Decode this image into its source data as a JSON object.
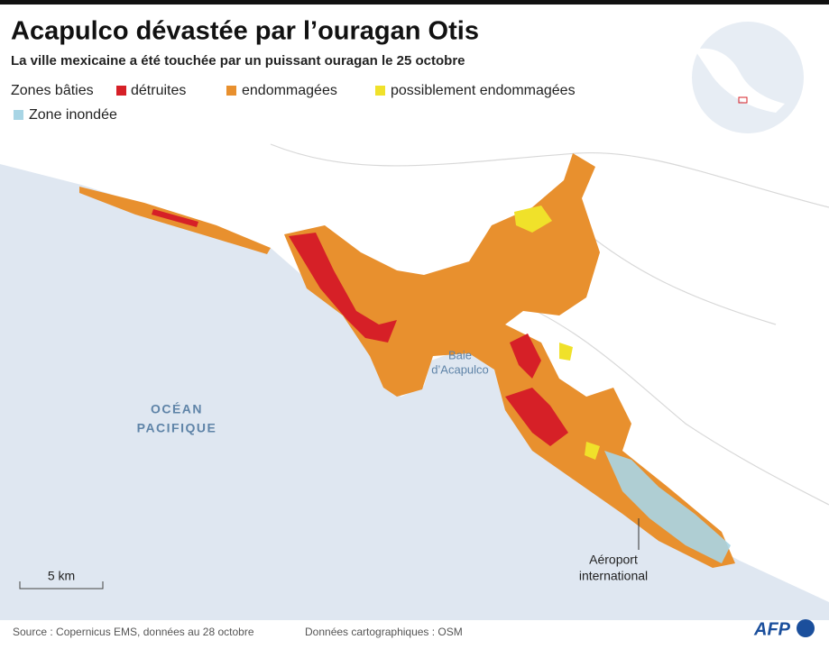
{
  "header": {
    "title": "Acapulco dévastée par l’ouragan Otis",
    "subtitle": "La ville mexicaine a été touchée par un puissant ouragan le 25 octobre"
  },
  "legend": {
    "label": "Zones bâties",
    "items": [
      "détruites",
      "endommagées",
      "possiblement endommagées"
    ],
    "flood": "Zone inondée"
  },
  "map_labels": {
    "ocean": [
      "OCÉAN",
      "PACIFIQUE"
    ],
    "bay": [
      "Baie",
      "d’Acapulco"
    ],
    "airport": [
      "Aéroport",
      "international"
    ],
    "scale": "5 km"
  },
  "footer": {
    "source": "Source : Copernicus EMS, données au 28 octobre",
    "map_data": "Données cartographiques : OSM",
    "logo": "AFP"
  }
}
